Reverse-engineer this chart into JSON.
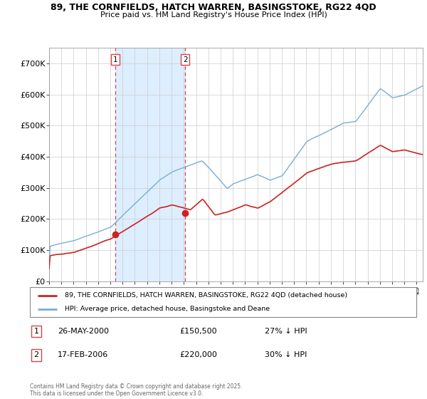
{
  "title_line1": "89, THE CORNFIELDS, HATCH WARREN, BASINGSTOKE, RG22 4QD",
  "title_line2": "Price paid vs. HM Land Registry's House Price Index (HPI)",
  "sale1_date": "26-MAY-2000",
  "sale1_price": 150500,
  "sale1_hpi_pct": "27% ↓ HPI",
  "sale2_date": "17-FEB-2006",
  "sale2_price": 220000,
  "sale2_hpi_pct": "30% ↓ HPI",
  "legend_red": "89, THE CORNFIELDS, HATCH WARREN, BASINGSTOKE, RG22 4QD (detached house)",
  "legend_blue": "HPI: Average price, detached house, Basingstoke and Deane",
  "footer": "Contains HM Land Registry data © Crown copyright and database right 2025.\nThis data is licensed under the Open Government Licence v3.0.",
  "red_color": "#cc2222",
  "blue_color": "#7aadd4",
  "shade_color": "#ddeeff",
  "dashed_color": "#dd4444",
  "ylim": [
    0,
    750000
  ],
  "yticks": [
    0,
    100000,
    200000,
    300000,
    400000,
    500000,
    600000,
    700000
  ],
  "sale1_x": 2000.4,
  "sale2_x": 2006.12,
  "xmin": 1995,
  "xmax": 2025.5
}
